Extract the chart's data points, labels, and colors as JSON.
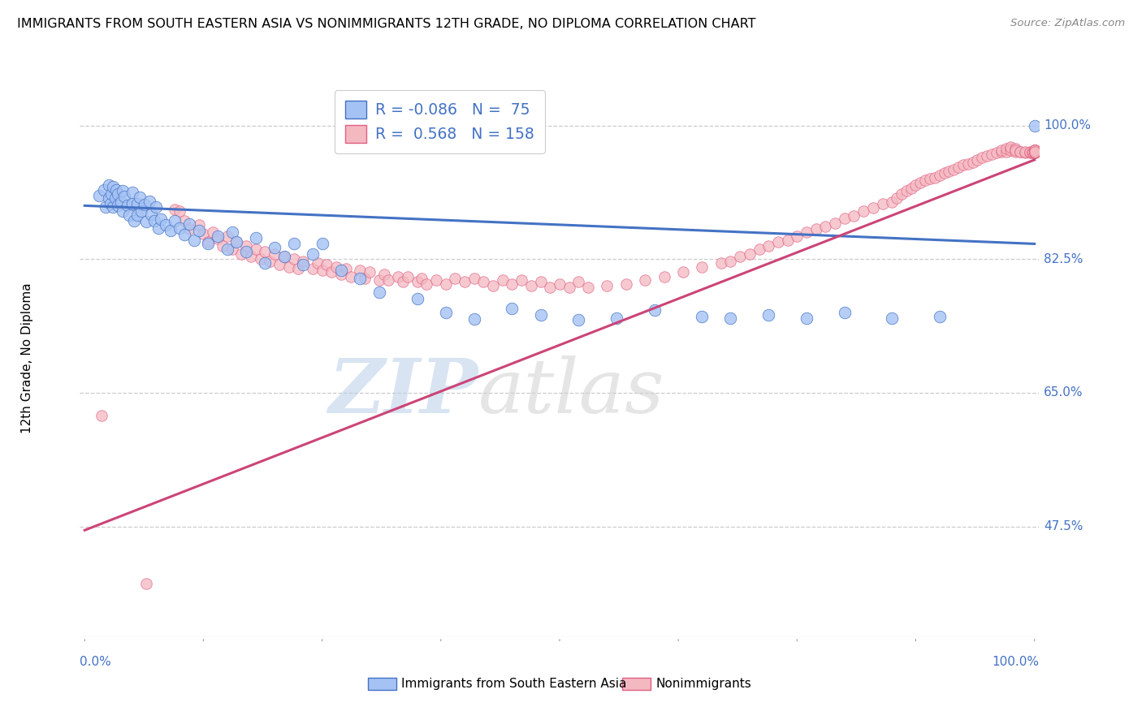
{
  "title": "IMMIGRANTS FROM SOUTH EASTERN ASIA VS NONIMMIGRANTS 12TH GRADE, NO DIPLOMA CORRELATION CHART",
  "source": "Source: ZipAtlas.com",
  "ylabel": "12th Grade, No Diploma",
  "ytick_labels": [
    "100.0%",
    "82.5%",
    "65.0%",
    "47.5%"
  ],
  "ytick_values": [
    1.0,
    0.825,
    0.65,
    0.475
  ],
  "ymin": 0.33,
  "ymax": 1.06,
  "xmin": -0.005,
  "xmax": 1.005,
  "blue_face": "#a4c2f4",
  "blue_edge": "#4472c4",
  "pink_face": "#f4b8c1",
  "pink_edge": "#e06080",
  "blue_line": "#4472c4",
  "pink_line": "#cc4477",
  "label_color": "#4472c4",
  "grid_color": "#cccccc",
  "blue_R": -0.086,
  "blue_N": 75,
  "pink_R": 0.568,
  "pink_N": 158,
  "legend_label_blue": "Immigrants from South Eastern Asia",
  "legend_label_pink": "Nonimmigrants",
  "blue_trend_x0": 0.0,
  "blue_trend_x1": 1.0,
  "blue_trend_y0": 0.895,
  "blue_trend_y1": 0.845,
  "pink_trend_x0": 0.0,
  "pink_trend_x1": 1.0,
  "pink_trend_y0": 0.47,
  "pink_trend_y1": 0.955,
  "blue_x": [
    0.015,
    0.02,
    0.022,
    0.025,
    0.025,
    0.027,
    0.028,
    0.03,
    0.03,
    0.032,
    0.033,
    0.035,
    0.035,
    0.038,
    0.04,
    0.04,
    0.042,
    0.045,
    0.047,
    0.05,
    0.05,
    0.052,
    0.055,
    0.055,
    0.058,
    0.06,
    0.063,
    0.065,
    0.068,
    0.07,
    0.073,
    0.075,
    0.078,
    0.08,
    0.085,
    0.09,
    0.095,
    0.1,
    0.105,
    0.11,
    0.115,
    0.12,
    0.13,
    0.14,
    0.15,
    0.155,
    0.16,
    0.17,
    0.18,
    0.19,
    0.2,
    0.21,
    0.22,
    0.23,
    0.24,
    0.25,
    0.27,
    0.29,
    0.31,
    0.35,
    0.38,
    0.41,
    0.45,
    0.48,
    0.52,
    0.56,
    0.6,
    0.65,
    0.68,
    0.72,
    0.76,
    0.8,
    0.85,
    0.9,
    1.0
  ],
  "blue_y": [
    0.908,
    0.916,
    0.893,
    0.922,
    0.905,
    0.897,
    0.91,
    0.893,
    0.92,
    0.905,
    0.916,
    0.895,
    0.91,
    0.9,
    0.915,
    0.888,
    0.907,
    0.895,
    0.883,
    0.897,
    0.912,
    0.875,
    0.897,
    0.883,
    0.906,
    0.888,
    0.896,
    0.874,
    0.901,
    0.884,
    0.875,
    0.893,
    0.866,
    0.877,
    0.87,
    0.862,
    0.875,
    0.866,
    0.857,
    0.871,
    0.85,
    0.862,
    0.845,
    0.855,
    0.838,
    0.86,
    0.848,
    0.835,
    0.853,
    0.82,
    0.84,
    0.828,
    0.845,
    0.818,
    0.832,
    0.845,
    0.81,
    0.8,
    0.782,
    0.773,
    0.755,
    0.747,
    0.76,
    0.752,
    0.745,
    0.748,
    0.758,
    0.75,
    0.748,
    0.752,
    0.748,
    0.755,
    0.748,
    0.75,
    1.0
  ],
  "pink_x": [
    0.018,
    0.065,
    0.095,
    0.1,
    0.105,
    0.11,
    0.12,
    0.125,
    0.13,
    0.135,
    0.14,
    0.145,
    0.15,
    0.155,
    0.16,
    0.165,
    0.17,
    0.175,
    0.18,
    0.185,
    0.19,
    0.195,
    0.2,
    0.205,
    0.21,
    0.215,
    0.22,
    0.225,
    0.23,
    0.24,
    0.245,
    0.25,
    0.255,
    0.26,
    0.265,
    0.27,
    0.275,
    0.28,
    0.29,
    0.295,
    0.3,
    0.31,
    0.315,
    0.32,
    0.33,
    0.335,
    0.34,
    0.35,
    0.355,
    0.36,
    0.37,
    0.38,
    0.39,
    0.4,
    0.41,
    0.42,
    0.43,
    0.44,
    0.45,
    0.46,
    0.47,
    0.48,
    0.49,
    0.5,
    0.51,
    0.52,
    0.53,
    0.55,
    0.57,
    0.59,
    0.61,
    0.63,
    0.65,
    0.67,
    0.68,
    0.69,
    0.7,
    0.71,
    0.72,
    0.73,
    0.74,
    0.75,
    0.76,
    0.77,
    0.78,
    0.79,
    0.8,
    0.81,
    0.82,
    0.83,
    0.84,
    0.85,
    0.855,
    0.86,
    0.865,
    0.87,
    0.875,
    0.88,
    0.885,
    0.89,
    0.895,
    0.9,
    0.905,
    0.91,
    0.915,
    0.92,
    0.925,
    0.93,
    0.935,
    0.94,
    0.945,
    0.95,
    0.955,
    0.96,
    0.965,
    0.965,
    0.97,
    0.97,
    0.975,
    0.975,
    0.975,
    0.98,
    0.98,
    0.98,
    0.985,
    0.985,
    0.99,
    0.99,
    0.995,
    0.995,
    0.998,
    0.998,
    0.999,
    1.0,
    1.0,
    1.0,
    1.0,
    1.0,
    1.0,
    1.0,
    1.0,
    1.0,
    1.0,
    1.0,
    1.0,
    1.0,
    1.0,
    1.0,
    1.0,
    1.0,
    1.0,
    1.0
  ],
  "pink_y": [
    0.62,
    0.4,
    0.89,
    0.888,
    0.875,
    0.865,
    0.87,
    0.858,
    0.848,
    0.86,
    0.852,
    0.842,
    0.855,
    0.838,
    0.848,
    0.832,
    0.842,
    0.828,
    0.838,
    0.825,
    0.835,
    0.822,
    0.832,
    0.818,
    0.828,
    0.815,
    0.825,
    0.812,
    0.822,
    0.812,
    0.82,
    0.81,
    0.818,
    0.808,
    0.815,
    0.805,
    0.812,
    0.802,
    0.81,
    0.8,
    0.808,
    0.798,
    0.805,
    0.798,
    0.802,
    0.795,
    0.802,
    0.795,
    0.8,
    0.792,
    0.798,
    0.792,
    0.8,
    0.795,
    0.8,
    0.795,
    0.79,
    0.798,
    0.792,
    0.798,
    0.79,
    0.795,
    0.788,
    0.792,
    0.788,
    0.795,
    0.788,
    0.79,
    0.792,
    0.798,
    0.802,
    0.808,
    0.815,
    0.82,
    0.822,
    0.828,
    0.832,
    0.838,
    0.842,
    0.848,
    0.85,
    0.855,
    0.86,
    0.865,
    0.868,
    0.872,
    0.878,
    0.882,
    0.888,
    0.892,
    0.898,
    0.9,
    0.905,
    0.91,
    0.915,
    0.918,
    0.922,
    0.925,
    0.928,
    0.93,
    0.932,
    0.935,
    0.938,
    0.94,
    0.942,
    0.945,
    0.948,
    0.95,
    0.952,
    0.955,
    0.958,
    0.96,
    0.962,
    0.964,
    0.966,
    0.968,
    0.966,
    0.97,
    0.97,
    0.968,
    0.972,
    0.97,
    0.966,
    0.968,
    0.966,
    0.966,
    0.964,
    0.966,
    0.964,
    0.966,
    0.964,
    0.966,
    0.964,
    0.968,
    0.966,
    0.964,
    0.968,
    0.966,
    0.964,
    0.968,
    0.966,
    0.964,
    0.968,
    0.966,
    0.964,
    0.966,
    0.964,
    0.968,
    0.966,
    0.964,
    0.968,
    0.966
  ]
}
